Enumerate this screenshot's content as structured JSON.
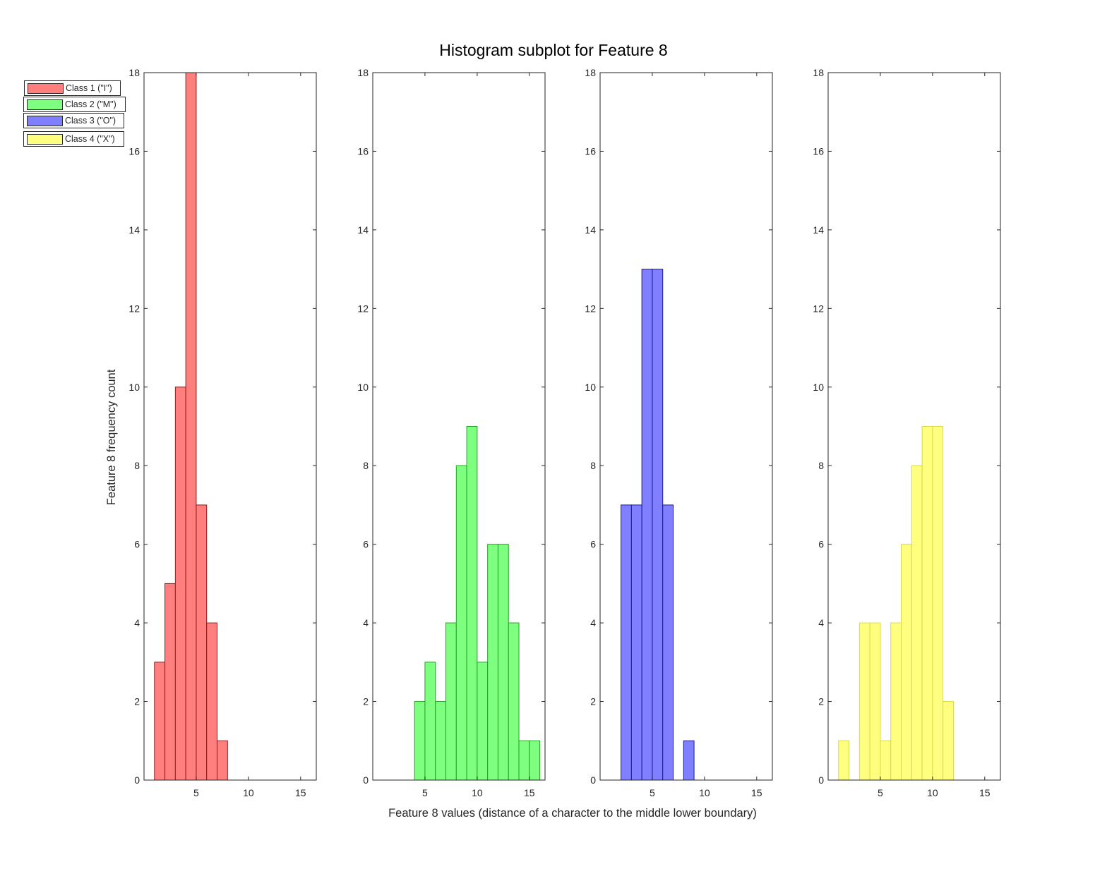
{
  "chart_data": {
    "type": "bar",
    "title": "Histogram subplot for Feature 8",
    "xlabel": "Feature 8 values (distance of a character to the middle lower boundary)",
    "ylabel": "Feature 8 frequency count",
    "xlim": [
      0,
      16.5
    ],
    "ylim": [
      0,
      18
    ],
    "xticks": [
      5,
      10,
      15
    ],
    "yticks": [
      0,
      2,
      4,
      6,
      8,
      10,
      12,
      14,
      16,
      18
    ],
    "grid": false,
    "legend_position": "top-left",
    "bin_width": 1,
    "series": [
      {
        "name": "Class 1 (\"I\")",
        "color": "#ff7f7f",
        "edge": "#8b1a1a",
        "bins": [
          {
            "x": 1,
            "count": 3
          },
          {
            "x": 2,
            "count": 5
          },
          {
            "x": 3,
            "count": 10
          },
          {
            "x": 4,
            "count": 18
          },
          {
            "x": 5,
            "count": 7
          },
          {
            "x": 6,
            "count": 4
          },
          {
            "x": 7,
            "count": 1
          }
        ]
      },
      {
        "name": "Class 2 (\"M\")",
        "color": "#7fff7f",
        "edge": "#22a022",
        "bins": [
          {
            "x": 4,
            "count": 2
          },
          {
            "x": 5,
            "count": 3
          },
          {
            "x": 6,
            "count": 2
          },
          {
            "x": 7,
            "count": 4
          },
          {
            "x": 8,
            "count": 8
          },
          {
            "x": 9,
            "count": 9
          },
          {
            "x": 10,
            "count": 3
          },
          {
            "x": 11,
            "count": 6
          },
          {
            "x": 12,
            "count": 6
          },
          {
            "x": 13,
            "count": 4
          },
          {
            "x": 14,
            "count": 1
          },
          {
            "x": 15,
            "count": 1
          }
        ]
      },
      {
        "name": "Class 3 (\"O\")",
        "color": "#7f7fff",
        "edge": "#1a1a8b",
        "bins": [
          {
            "x": 2,
            "count": 7
          },
          {
            "x": 3,
            "count": 7
          },
          {
            "x": 4,
            "count": 13
          },
          {
            "x": 5,
            "count": 13
          },
          {
            "x": 6,
            "count": 7
          },
          {
            "x": 8,
            "count": 1
          }
        ]
      },
      {
        "name": "Class 4 (\"X\")",
        "color": "#ffff7f",
        "edge": "#d8d84a",
        "bins": [
          {
            "x": 1,
            "count": 1
          },
          {
            "x": 3,
            "count": 4
          },
          {
            "x": 4,
            "count": 4
          },
          {
            "x": 5,
            "count": 1
          },
          {
            "x": 6,
            "count": 4
          },
          {
            "x": 7,
            "count": 6
          },
          {
            "x": 8,
            "count": 8
          },
          {
            "x": 9,
            "count": 9
          },
          {
            "x": 10,
            "count": 9
          },
          {
            "x": 11,
            "count": 2
          }
        ]
      }
    ]
  }
}
